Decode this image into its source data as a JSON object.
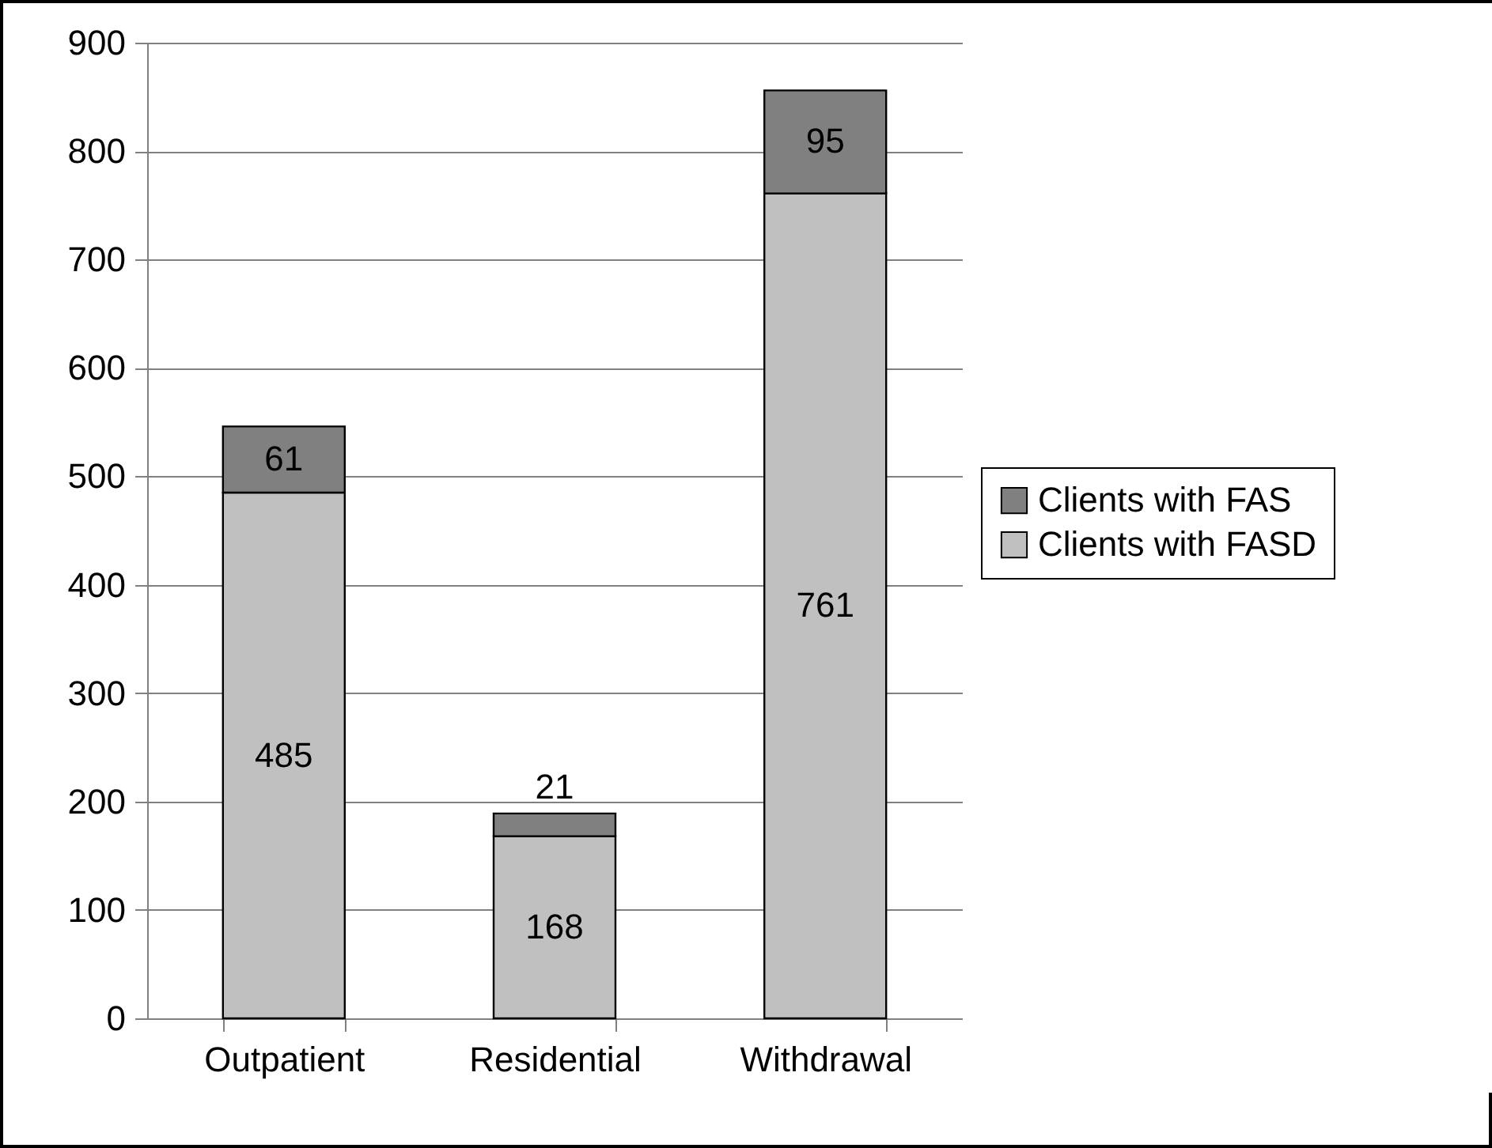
{
  "chart_data": {
    "type": "bar",
    "stacked": true,
    "categories": [
      "Outpatient",
      "Residential",
      "Withdrawal"
    ],
    "series": [
      {
        "name": "Clients with FASD",
        "color": "#c0c0c0",
        "values": [
          485,
          168,
          761
        ]
      },
      {
        "name": "Clients with FAS",
        "color": "#808080",
        "values": [
          61,
          21,
          95
        ]
      }
    ],
    "ylim": [
      0,
      900
    ],
    "yticks": [
      0,
      100,
      200,
      300,
      400,
      500,
      600,
      700,
      800,
      900
    ],
    "grid": "y",
    "legend": "right",
    "data_labels": true
  }
}
